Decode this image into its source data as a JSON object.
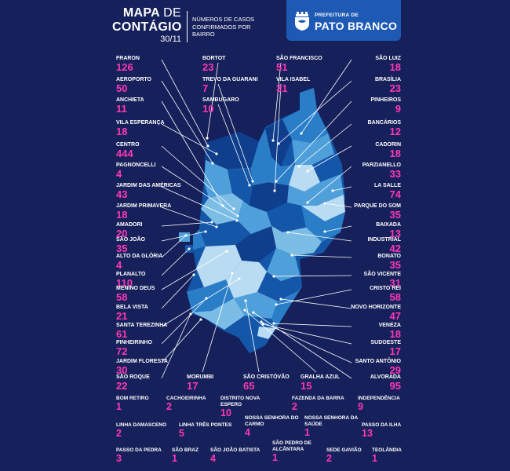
{
  "header": {
    "title_line1": "MAPA",
    "title_de": "DE",
    "title_line2": "CONTÁGIO",
    "date": "30/11",
    "subtitle": "NÚMEROS DE CASOS CONFIRMADOS POR BAIRRO",
    "logo_prefix": "PREFEITURA DE",
    "logo_name": "PATO BRANCO"
  },
  "colors": {
    "background": "#16205a",
    "case_number": "#ff38b6",
    "label": "#ffffff",
    "logo_box": "#1e5ab4",
    "map_shades": [
      "#0f3e8c",
      "#1456a8",
      "#2a7ec8",
      "#4fa0da",
      "#7cbde6",
      "#b9dcf3"
    ]
  },
  "left_column": [
    {
      "name": "FRARON",
      "value": "126"
    },
    {
      "name": "AEROPORTO",
      "value": "50"
    },
    {
      "name": "ANCHIETA",
      "value": "11"
    },
    {
      "name": "VILA ESPERANÇA",
      "value": "18"
    },
    {
      "name": "CENTRO",
      "value": "444"
    },
    {
      "name": "PAGNONCELLI",
      "value": "4"
    },
    {
      "name": "JARDIM DAS AMÉRICAS",
      "value": "43"
    },
    {
      "name": "JARDIM PRIMAVERA",
      "value": "18"
    },
    {
      "name": "AMADORI",
      "value": "20"
    },
    {
      "name": "SÃO JOÃO",
      "value": "35"
    },
    {
      "name": "ALTO DA GLÓRIA",
      "value": "4"
    },
    {
      "name": "PLANALTO",
      "value": "110"
    },
    {
      "name": "MENINO DEUS",
      "value": "58"
    },
    {
      "name": "BELA VISTA",
      "value": "21"
    },
    {
      "name": "SANTA TEREZINHA",
      "value": "61"
    },
    {
      "name": "PINHEIRINHO",
      "value": "72"
    },
    {
      "name": "JARDIM FLORESTA",
      "value": "30"
    },
    {
      "name": "SÃO ROQUE",
      "value": "22"
    }
  ],
  "right_column": [
    {
      "name": "SÃO LUIZ",
      "value": "18"
    },
    {
      "name": "BRASÍLIA",
      "value": "23"
    },
    {
      "name": "PINHEIROS",
      "value": "9"
    },
    {
      "name": "BANCÁRIOS",
      "value": "12"
    },
    {
      "name": "CADORIN",
      "value": "18"
    },
    {
      "name": "PARZIANELLO",
      "value": "33"
    },
    {
      "name": "LA SALLE",
      "value": "74"
    },
    {
      "name": "PARQUE DO SOM",
      "value": "35"
    },
    {
      "name": "BAIXADA",
      "value": "13"
    },
    {
      "name": "INDUSTRIAL",
      "value": "42"
    },
    {
      "name": "BONATO",
      "value": "35"
    },
    {
      "name": "SÃO VICENTE",
      "value": "31"
    },
    {
      "name": "CRISTO REI",
      "value": "58"
    },
    {
      "name": "NOVO HORIZONTE",
      "value": "47"
    },
    {
      "name": "VENEZA",
      "value": "18"
    },
    {
      "name": "SUDOESTE",
      "value": "17"
    },
    {
      "name": "SANTO ANTÔNIO",
      "value": "29"
    },
    {
      "name": "ALVORADA",
      "value": "95"
    }
  ],
  "top_center": [
    {
      "name": "BORTOT",
      "value": "23"
    },
    {
      "name": "TREVO DA GUARANI",
      "value": "7"
    },
    {
      "name": "SAMBUGARO",
      "value": "10"
    },
    {
      "name": "SÃO FRANCISCO",
      "value": "51"
    },
    {
      "name": "VILA ISABEL",
      "value": "31"
    }
  ],
  "bottom_center": [
    {
      "name": "MORUMBI",
      "value": "17"
    },
    {
      "name": "SÃO CRISTÓVÃO",
      "value": "65"
    },
    {
      "name": "GRALHA AZUL",
      "value": "15"
    }
  ],
  "rural": [
    {
      "name": "BOM RETIRO",
      "value": "1"
    },
    {
      "name": "CACHOEIRINHA",
      "value": "2"
    },
    {
      "name": "DISTRITO NOVA ESPERO",
      "value": "10"
    },
    {
      "name": "FAZENDA DA BARRA",
      "value": "2"
    },
    {
      "name": "INDEPENDÊNCIA",
      "value": "9"
    },
    {
      "name": "LINHA DAMASCENO",
      "value": "2"
    },
    {
      "name": "LINHA TRÊS PONTES",
      "value": "5"
    },
    {
      "name": "NOSSA SENHORA DO CARMO",
      "value": "4"
    },
    {
      "name": "NOSSA SENHORA DA SAÚDE",
      "value": "1"
    },
    {
      "name": "PASSO DA ILHA",
      "value": "13"
    },
    {
      "name": "PASSO DA PEDRA",
      "value": "3"
    },
    {
      "name": "SÃO BRAZ",
      "value": "1"
    },
    {
      "name": "SÃO JOÃO BATISTA",
      "value": "4"
    },
    {
      "name": "SÃO PEDRO DE ALCÂNTARA",
      "value": "1"
    },
    {
      "name": "SEDE GAVIÃO",
      "value": "2"
    },
    {
      "name": "TEOLÂNDIA",
      "value": "1"
    }
  ]
}
